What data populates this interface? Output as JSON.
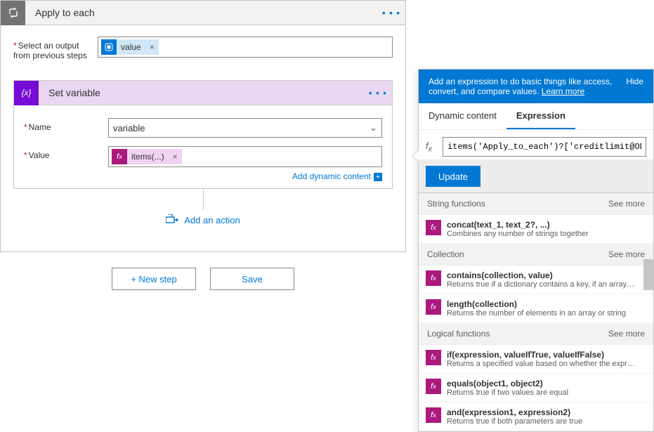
{
  "colors": {
    "msBlue": "#0078d4",
    "purpleAction": "#770bd6",
    "magentaFx": "#ab197d",
    "grayIcon": "#737373",
    "border": "#c8c6c4",
    "headerBg": "#f3f2f1",
    "innerHeaderBg": "#e9d7f3",
    "tokenBg": "#d0e7f8",
    "fxTokenBg": "#f0d4f2"
  },
  "foreach": {
    "title": "Apply to each",
    "outputLabel": "Select an output from previous steps",
    "token": {
      "label": "value"
    }
  },
  "setvar": {
    "title": "Set variable",
    "nameLabel": "Name",
    "nameValue": "variable",
    "valueLabel": "Value",
    "valueToken": "items(...)",
    "addDynamic": "Add dynamic content"
  },
  "addAction": "Add an action",
  "buttons": {
    "newStep": "+ New step",
    "save": "Save"
  },
  "panel": {
    "blurb": "Add an expression to do basic things like access, convert, and compare values. ",
    "learnMore": "Learn more",
    "hide": "Hide",
    "tabs": {
      "dynamic": "Dynamic content",
      "expression": "Expression"
    },
    "exprValue": "items('Apply_to_each')?['creditlimit@OData",
    "update": "Update",
    "seeMore": "See more",
    "groups": [
      {
        "title": "String functions",
        "items": [
          {
            "sig": "concat(text_1, text_2?, ...)",
            "desc": "Combines any number of strings together"
          }
        ]
      },
      {
        "title": "Collection",
        "items": [
          {
            "sig": "contains(collection, value)",
            "desc": "Returns true if a dictionary contains a key, if an array cont..."
          },
          {
            "sig": "length(collection)",
            "desc": "Returns the number of elements in an array or string"
          }
        ]
      },
      {
        "title": "Logical functions",
        "items": [
          {
            "sig": "if(expression, valueIfTrue, valueIfFalse)",
            "desc": "Returns a specified value based on whether the expressio..."
          },
          {
            "sig": "equals(object1, object2)",
            "desc": "Returns true if two values are equal"
          },
          {
            "sig": "and(expression1, expression2)",
            "desc": "Returns true if both parameters are true"
          }
        ]
      }
    ]
  }
}
